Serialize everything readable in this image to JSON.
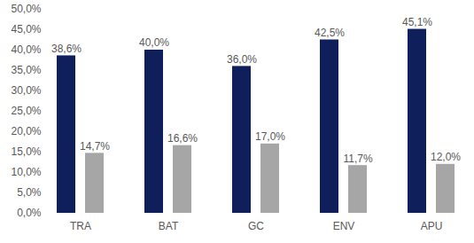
{
  "chart_data": {
    "type": "bar",
    "categories": [
      "TRA",
      "BAT",
      "GC",
      "ENV",
      "APU"
    ],
    "series": [
      {
        "color": "#0e1f5b",
        "values": [
          38.6,
          40.0,
          36.0,
          42.5,
          45.1
        ],
        "value_labels": [
          "38,6%",
          "40,0%",
          "36,0%",
          "42,5%",
          "45,1%"
        ]
      },
      {
        "color": "#a6a6a6",
        "values": [
          14.7,
          16.6,
          17.0,
          11.7,
          12.0
        ],
        "value_labels": [
          "14,7%",
          "16,6%",
          "17,0%",
          "11,7%",
          "12,0%"
        ]
      }
    ],
    "ylim": [
      0,
      50
    ],
    "yticks": [
      {
        "value": 0,
        "label": "0,0%"
      },
      {
        "value": 5,
        "label": "5,0%"
      },
      {
        "value": 10,
        "label": "10,0%"
      },
      {
        "value": 15,
        "label": "15,0%"
      },
      {
        "value": 20,
        "label": "20,0%"
      },
      {
        "value": 25,
        "label": "25,0%"
      },
      {
        "value": 30,
        "label": "30,0%"
      },
      {
        "value": 35,
        "label": "35,0%"
      },
      {
        "value": 40,
        "label": "40,0%"
      },
      {
        "value": 45,
        "label": "45,0%"
      },
      {
        "value": 50,
        "label": "50,0%"
      }
    ],
    "grid": false,
    "data_labels": true
  }
}
